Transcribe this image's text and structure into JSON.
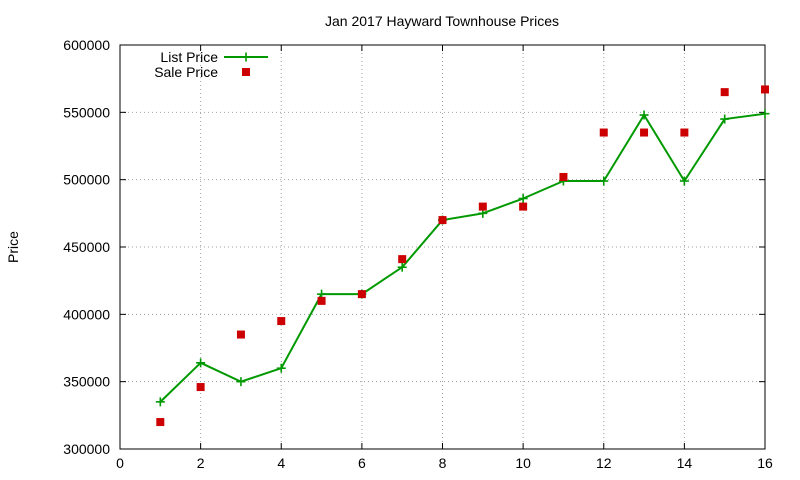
{
  "chart_data": {
    "type": "line",
    "title": "Jan 2017 Hayward Townhouse Prices",
    "xlabel": "",
    "ylabel": "Price",
    "xlim": [
      0,
      16
    ],
    "ylim": [
      300000,
      600000
    ],
    "xticks": [
      0,
      2,
      4,
      6,
      8,
      10,
      12,
      14,
      16
    ],
    "yticks": [
      300000,
      350000,
      400000,
      450000,
      500000,
      550000,
      600000
    ],
    "grid": true,
    "legend_position": "top-left",
    "series": [
      {
        "name": "List Price",
        "style": "line-with-plus-markers",
        "color": "#009900",
        "x": [
          1,
          2,
          3,
          4,
          5,
          6,
          7,
          8,
          9,
          10,
          11,
          12,
          13,
          14,
          15,
          16
        ],
        "y": [
          335000,
          364000,
          350000,
          360000,
          415000,
          415000,
          435000,
          470000,
          475000,
          486000,
          499000,
          499000,
          548000,
          499000,
          545000,
          549000
        ]
      },
      {
        "name": "Sale Price",
        "style": "square-markers",
        "color": "#cc0000",
        "x": [
          1,
          2,
          3,
          4,
          5,
          6,
          7,
          8,
          9,
          10,
          11,
          12,
          13,
          14,
          15,
          16
        ],
        "y": [
          320000,
          346000,
          385000,
          395000,
          410000,
          415000,
          441000,
          470000,
          480000,
          480000,
          502000,
          535000,
          535000,
          535000,
          565000,
          567000
        ]
      }
    ]
  }
}
